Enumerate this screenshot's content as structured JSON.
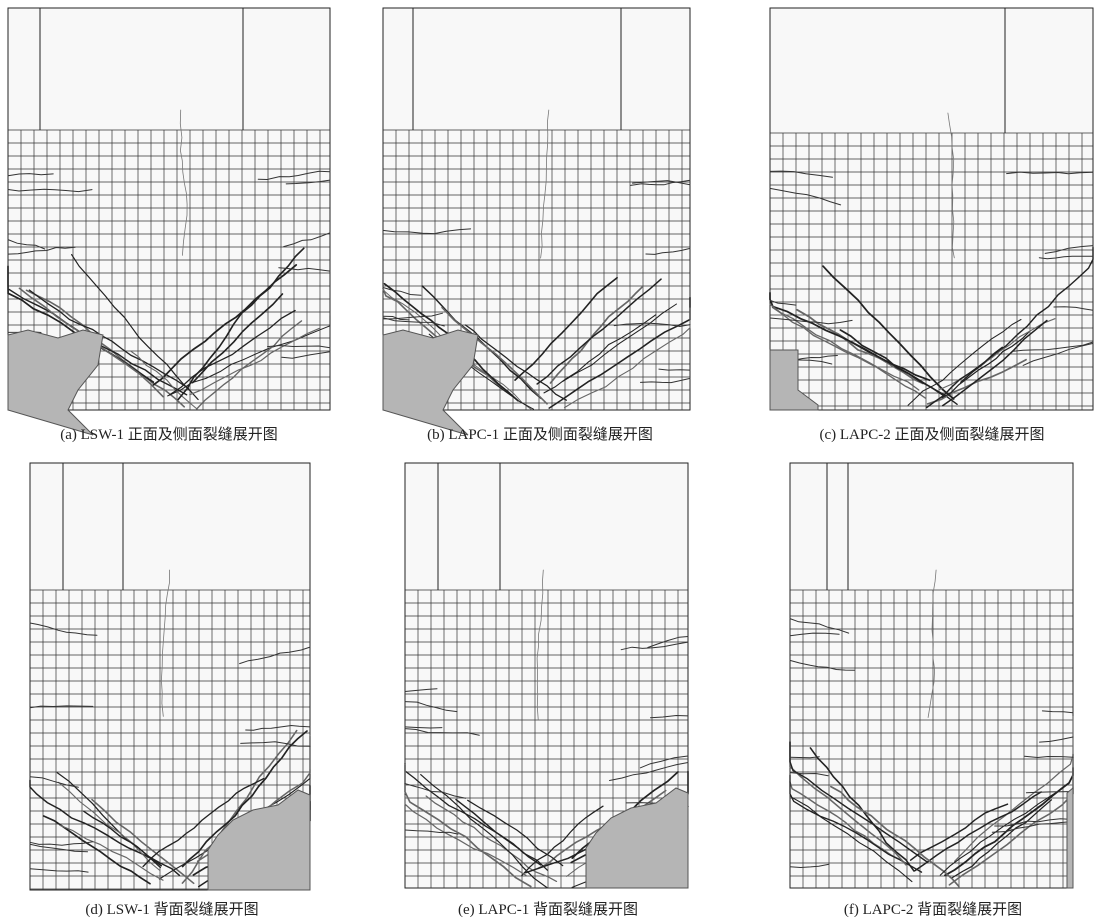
{
  "figure": {
    "panels": [
      {
        "caption": "(a) LSW-1 正面及侧面裂缝展开图"
      },
      {
        "caption": "(b) LAPC-1 正面及侧面裂缝展开图"
      },
      {
        "caption": "(c) LAPC-2 正面及侧面裂缝展开图"
      },
      {
        "caption": "(d) LSW-1 背面裂缝展开图"
      },
      {
        "caption": "(e) LAPC-1 背面裂缝展开图"
      },
      {
        "caption": "(f) LAPC-2 背面裂缝展开图"
      }
    ]
  }
}
